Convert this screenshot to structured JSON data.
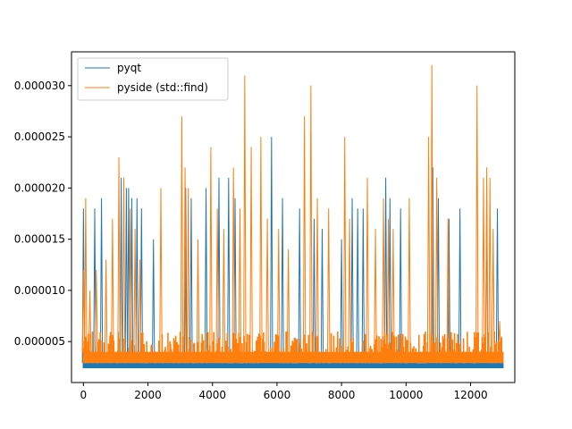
{
  "chart_data": {
    "type": "line",
    "title": "",
    "xlabel": "",
    "ylabel": "",
    "xlim": [
      -370,
      13370
    ],
    "ylim": [
      1e-06,
      3.33e-05
    ],
    "x_ticks": [
      0,
      2000,
      4000,
      6000,
      8000,
      10000,
      12000
    ],
    "x_tick_labels": [
      "0",
      "2000",
      "4000",
      "6000",
      "8000",
      "10000",
      "12000"
    ],
    "y_ticks": [
      5e-06,
      1e-05,
      1.5e-05,
      2e-05,
      2.5e-05,
      3e-05
    ],
    "y_tick_labels": [
      "0.000005",
      "0.000010",
      "0.000015",
      "0.000020",
      "0.000025",
      "0.000030"
    ],
    "grid": false,
    "legend_position": "top-left",
    "n_points": 13000,
    "series": [
      {
        "name": "pyqt",
        "color": "#1f77b4",
        "baseline_band": [
          2.4e-06,
          2.9e-06
        ],
        "background_max": 3.5e-06,
        "spikes": [
          {
            "x": 0,
            "y": 1.8e-05
          },
          {
            "x": 350,
            "y": 1.8e-05
          },
          {
            "x": 560,
            "y": 1.9e-05
          },
          {
            "x": 1170,
            "y": 2.1e-05
          },
          {
            "x": 1330,
            "y": 2e-05
          },
          {
            "x": 1400,
            "y": 2e-05
          },
          {
            "x": 1500,
            "y": 1.9e-05
          },
          {
            "x": 1660,
            "y": 1.9e-05
          },
          {
            "x": 1800,
            "y": 1.8e-05
          },
          {
            "x": 2170,
            "y": 1.5e-05
          },
          {
            "x": 3170,
            "y": 2e-05
          },
          {
            "x": 3340,
            "y": 1.9e-05
          },
          {
            "x": 3800,
            "y": 2e-05
          },
          {
            "x": 4200,
            "y": 2.1e-05
          },
          {
            "x": 4500,
            "y": 2.1e-05
          },
          {
            "x": 4700,
            "y": 1.9e-05
          },
          {
            "x": 5830,
            "y": 2.5e-05
          },
          {
            "x": 6170,
            "y": 1.9e-05
          },
          {
            "x": 6700,
            "y": 1.8e-05
          },
          {
            "x": 7150,
            "y": 1.7e-05
          },
          {
            "x": 7400,
            "y": 1.6e-05
          },
          {
            "x": 8000,
            "y": 1.5e-05
          },
          {
            "x": 8330,
            "y": 1.9e-05
          },
          {
            "x": 8500,
            "y": 1.8e-05
          },
          {
            "x": 8670,
            "y": 1.8e-05
          },
          {
            "x": 9370,
            "y": 2.1e-05
          },
          {
            "x": 9500,
            "y": 1.9e-05
          },
          {
            "x": 9830,
            "y": 1.8e-05
          },
          {
            "x": 10830,
            "y": 2.2e-05
          },
          {
            "x": 11000,
            "y": 1.9e-05
          },
          {
            "x": 11330,
            "y": 1.7e-05
          },
          {
            "x": 11670,
            "y": 1.8e-05
          },
          {
            "x": 12500,
            "y": 1.9e-05
          },
          {
            "x": 12830,
            "y": 1.8e-05
          }
        ]
      },
      {
        "name": "pyside (std::find)",
        "color": "#ff7f0e",
        "baseline_band": [
          2.9e-06,
          4e-06
        ],
        "background_max": 6e-06,
        "spikes": [
          {
            "x": 0,
            "y": 1.2e-05
          },
          {
            "x": 70,
            "y": 1.9e-05
          },
          {
            "x": 200,
            "y": 1e-05
          },
          {
            "x": 400,
            "y": 1.2e-05
          },
          {
            "x": 700,
            "y": 1.3e-05
          },
          {
            "x": 900,
            "y": 1.7e-05
          },
          {
            "x": 1100,
            "y": 2.3e-05
          },
          {
            "x": 1250,
            "y": 2.1e-05
          },
          {
            "x": 1450,
            "y": 1.8e-05
          },
          {
            "x": 1600,
            "y": 1.6e-05
          },
          {
            "x": 1750,
            "y": 1.3e-05
          },
          {
            "x": 2400,
            "y": 2e-05
          },
          {
            "x": 3050,
            "y": 2.7e-05
          },
          {
            "x": 3150,
            "y": 2.2e-05
          },
          {
            "x": 3250,
            "y": 2e-05
          },
          {
            "x": 3550,
            "y": 1.5e-05
          },
          {
            "x": 3950,
            "y": 2.4e-05
          },
          {
            "x": 4150,
            "y": 1.8e-05
          },
          {
            "x": 4350,
            "y": 1.6e-05
          },
          {
            "x": 4650,
            "y": 2.2e-05
          },
          {
            "x": 4850,
            "y": 1.8e-05
          },
          {
            "x": 5000,
            "y": 3.1e-05
          },
          {
            "x": 5200,
            "y": 2.4e-05
          },
          {
            "x": 5500,
            "y": 2.5e-05
          },
          {
            "x": 5700,
            "y": 1.7e-05
          },
          {
            "x": 6050,
            "y": 1.6e-05
          },
          {
            "x": 6350,
            "y": 1.4e-05
          },
          {
            "x": 6850,
            "y": 2.7e-05
          },
          {
            "x": 7050,
            "y": 3e-05
          },
          {
            "x": 7250,
            "y": 1.9e-05
          },
          {
            "x": 7600,
            "y": 1.8e-05
          },
          {
            "x": 8100,
            "y": 2.5e-05
          },
          {
            "x": 8250,
            "y": 1.7e-05
          },
          {
            "x": 8800,
            "y": 2.1e-05
          },
          {
            "x": 9050,
            "y": 1.6e-05
          },
          {
            "x": 9300,
            "y": 1.9e-05
          },
          {
            "x": 9450,
            "y": 1.7e-05
          },
          {
            "x": 9600,
            "y": 1.6e-05
          },
          {
            "x": 10100,
            "y": 1.9e-05
          },
          {
            "x": 10700,
            "y": 2.5e-05
          },
          {
            "x": 10800,
            "y": 3.2e-05
          },
          {
            "x": 10950,
            "y": 2.1e-05
          },
          {
            "x": 11300,
            "y": 1.7e-05
          },
          {
            "x": 12200,
            "y": 3e-05
          },
          {
            "x": 12400,
            "y": 2.1e-05
          },
          {
            "x": 12500,
            "y": 2.2e-05
          },
          {
            "x": 12600,
            "y": 2.1e-05
          },
          {
            "x": 12700,
            "y": 1.6e-05
          },
          {
            "x": 12900,
            "y": 7e-06
          }
        ]
      }
    ]
  }
}
